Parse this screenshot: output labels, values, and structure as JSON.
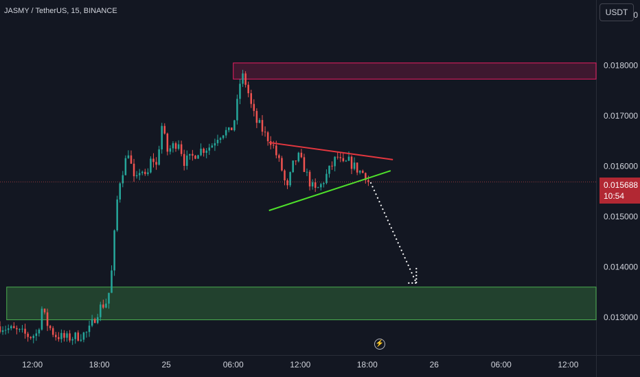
{
  "header": {
    "symbol_title": "JASMY / TetherUS, 15, BINANCE",
    "currency_button": "USDT"
  },
  "price_badge": {
    "price": "0.015688",
    "countdown": "10:54",
    "color": "#b22833"
  },
  "colors": {
    "background": "#131722",
    "up_candle": "#26a69a",
    "down_candle": "#ef5350",
    "resistance_zone": "#e91e63",
    "support_zone": "#4caf50",
    "resistance_trendline": "#e5373f",
    "support_trendline": "#4ee02b",
    "projection": "#ffffff"
  },
  "chart_data": {
    "type": "candlestick",
    "symbol": "JASMY / TetherUS",
    "interval": "15",
    "exchange": "BINANCE",
    "currency": "USDT",
    "y_axis": {
      "range": [
        0.01225,
        0.0193
      ],
      "tick_labels": [
        "0.019000",
        "0.018000",
        "0.017000",
        "0.016000",
        "0.015000",
        "0.014000",
        "0.013000"
      ],
      "tick_values": [
        0.019,
        0.018,
        0.017,
        0.016,
        0.015,
        0.014,
        0.013
      ]
    },
    "x_axis": {
      "tick_labels": [
        "12:00",
        "18:00",
        "25",
        "06:00",
        "12:00",
        "18:00",
        "26",
        "06:00",
        "12:00"
      ],
      "tick_hours": [
        12,
        18,
        24,
        30,
        36,
        42,
        48,
        54,
        60
      ],
      "range_hours": [
        9.1,
        62.5
      ]
    },
    "ohlc_anchor_closes": [
      [
        9.1,
        0.01282
      ],
      [
        10.5,
        0.01273
      ],
      [
        11.8,
        0.01262
      ],
      [
        12.5,
        0.01268
      ],
      [
        12.8,
        0.0132
      ],
      [
        13.3,
        0.01288
      ],
      [
        14.0,
        0.01265
      ],
      [
        15.0,
        0.01258
      ],
      [
        16.0,
        0.01262
      ],
      [
        17.0,
        0.0127
      ],
      [
        17.5,
        0.01295
      ],
      [
        18.0,
        0.01318
      ],
      [
        18.6,
        0.0133
      ],
      [
        19.0,
        0.0136
      ],
      [
        19.3,
        0.0145
      ],
      [
        19.7,
        0.0156
      ],
      [
        20.2,
        0.016
      ],
      [
        20.6,
        0.0163
      ],
      [
        21.2,
        0.0156
      ],
      [
        21.7,
        0.016
      ],
      [
        22.2,
        0.0157
      ],
      [
        22.7,
        0.0162
      ],
      [
        23.1,
        0.016
      ],
      [
        23.6,
        0.0168
      ],
      [
        24.1,
        0.0163
      ],
      [
        24.6,
        0.0164
      ],
      [
        25.1,
        0.0165
      ],
      [
        25.6,
        0.0161
      ],
      [
        26.2,
        0.01615
      ],
      [
        26.8,
        0.0163
      ],
      [
        27.4,
        0.01635
      ],
      [
        28.0,
        0.0164
      ],
      [
        28.6,
        0.0166
      ],
      [
        29.2,
        0.0167
      ],
      [
        29.7,
        0.01665
      ],
      [
        30.2,
        0.017
      ],
      [
        30.6,
        0.01765
      ],
      [
        30.9,
        0.0178
      ],
      [
        31.3,
        0.0175
      ],
      [
        31.6,
        0.0172
      ],
      [
        32.0,
        0.0169
      ],
      [
        32.4,
        0.0168
      ],
      [
        32.9,
        0.0166
      ],
      [
        33.4,
        0.0165
      ],
      [
        33.9,
        0.0162
      ],
      [
        34.4,
        0.0159
      ],
      [
        34.8,
        0.0155
      ],
      [
        35.3,
        0.016
      ],
      [
        35.8,
        0.0162
      ],
      [
        36.3,
        0.016
      ],
      [
        36.8,
        0.0157
      ],
      [
        37.3,
        0.0155
      ],
      [
        37.8,
        0.0156
      ],
      [
        38.3,
        0.0158
      ],
      [
        38.8,
        0.016
      ],
      [
        39.3,
        0.0162
      ],
      [
        39.8,
        0.016
      ],
      [
        40.3,
        0.0161
      ],
      [
        40.8,
        0.016
      ],
      [
        41.3,
        0.0159
      ],
      [
        41.8,
        0.01585
      ],
      [
        42.1,
        0.01569
      ]
    ],
    "last_price": 0.015688,
    "annotations": {
      "resistance_zone": {
        "top": 0.01805,
        "bottom": 0.01773,
        "x_start_hours": 30.0
      },
      "support_zone": {
        "top": 0.0136,
        "bottom": 0.01295,
        "x_start_hours": 9.7
      },
      "descending_trendline": {
        "start": [
          33.2,
          0.01647
        ],
        "end": [
          44.3,
          0.01613
        ]
      },
      "ascending_trendline": {
        "start": [
          33.2,
          0.01512
        ],
        "end": [
          44.1,
          0.01591
        ]
      },
      "projection": {
        "start": [
          42.3,
          0.01568
        ],
        "end": [
          46.4,
          0.01368
        ]
      }
    }
  }
}
